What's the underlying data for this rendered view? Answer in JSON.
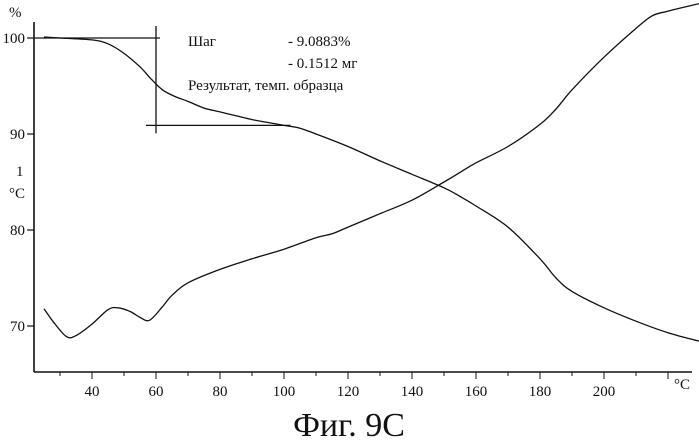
{
  "figure": {
    "caption": "Фиг. 9C"
  },
  "chart_data": {
    "type": "line",
    "title": "",
    "xlabel": "",
    "x_unit": "°C",
    "y_unit": "%",
    "y_secondary_unit": "°C",
    "y_secondary_marker": "1",
    "xlim": [
      25,
      230
    ],
    "ylim": [
      66,
      102
    ],
    "x_ticks": [
      40,
      60,
      80,
      100,
      120,
      140,
      160,
      180,
      200
    ],
    "y_ticks": [
      {
        "value": 100,
        "label": "100"
      },
      {
        "value": 90,
        "label": "90"
      },
      {
        "value": 80,
        "label": "80"
      },
      {
        "value": 70,
        "label": "70"
      }
    ],
    "grid": false,
    "series": [
      {
        "role": "weight-loss-curve",
        "x": [
          25,
          30,
          40,
          45,
          50,
          55,
          58,
          62,
          66,
          70,
          75,
          80,
          85,
          90,
          95,
          100,
          105,
          110,
          120,
          130,
          140,
          150,
          155,
          160,
          170,
          180,
          185,
          190,
          200,
          210,
          220,
          230
        ],
        "y": [
          100.1,
          100.0,
          99.8,
          99.4,
          98.4,
          97.0,
          95.9,
          94.6,
          93.9,
          93.4,
          92.7,
          92.3,
          91.9,
          91.5,
          91.2,
          90.9,
          90.6,
          90.0,
          88.7,
          87.2,
          85.8,
          84.4,
          83.5,
          82.5,
          80.3,
          77.0,
          75.0,
          73.6,
          71.9,
          70.5,
          69.3,
          68.4
        ]
      },
      {
        "role": "temperature-curve",
        "x": [
          25,
          28,
          32,
          35,
          40,
          45,
          48,
          52,
          55,
          58,
          62,
          65,
          70,
          80,
          90,
          100,
          110,
          115,
          120,
          130,
          140,
          150,
          155,
          160,
          170,
          180,
          185,
          190,
          200,
          210,
          215,
          220,
          230
        ],
        "y": [
          71.8,
          70.4,
          68.9,
          69.0,
          70.2,
          71.7,
          71.9,
          71.5,
          70.9,
          70.6,
          72.0,
          73.2,
          74.5,
          75.9,
          77.0,
          78.0,
          79.2,
          79.6,
          80.3,
          81.7,
          83.1,
          85.0,
          86.0,
          87.0,
          88.7,
          91.0,
          92.6,
          94.6,
          98.0,
          101.0,
          102.3,
          102.8,
          103.6
        ]
      }
    ],
    "annotation": {
      "step_label": "Шаг",
      "step_percent": "- 9.0883%",
      "step_mass": "- 0.1512 мг",
      "result_label": "Результат, темп. образца",
      "step_bounds_x": [
        60,
        102
      ],
      "step_levels_y": [
        100.0,
        90.9
      ]
    }
  }
}
